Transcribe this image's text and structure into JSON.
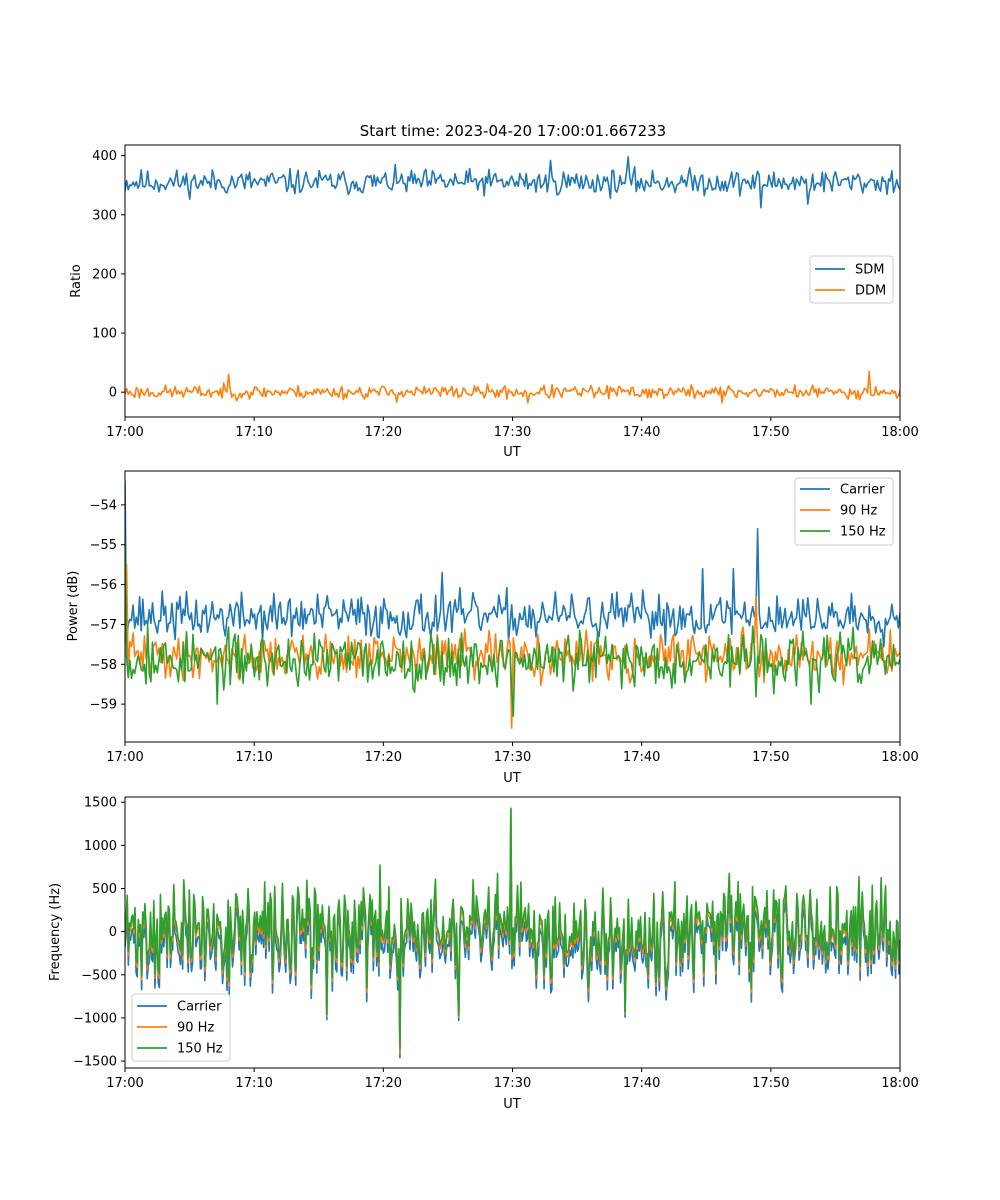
{
  "figure": {
    "title": "Start time: 2023-04-20 17:00:01.667233"
  },
  "chart_data": [
    {
      "type": "line",
      "xlabel": "UT",
      "ylabel": "Ratio",
      "xlim": [
        "17:00",
        "18:00"
      ],
      "xticks": [
        "17:00",
        "17:10",
        "17:20",
        "17:30",
        "17:40",
        "17:50",
        "18:00"
      ],
      "ylim": [
        -42,
        418
      ],
      "yticks": [
        0,
        100,
        200,
        300,
        400
      ],
      "grid": false,
      "legend_position": "center-right",
      "series": [
        {
          "name": "SDM",
          "color": "#1f77b4",
          "points": 480,
          "center": 355,
          "spread": 13,
          "seed": 11,
          "spikes": [
            [
              0.0,
              340
            ],
            [
              0.55,
              392
            ],
            [
              0.65,
              398
            ],
            [
              0.82,
              312
            ],
            [
              0.88,
              318
            ]
          ]
        },
        {
          "name": "DDM",
          "color": "#ff7f0e",
          "points": 480,
          "center": 0,
          "spread": 7,
          "seed": 23,
          "spikes": [
            [
              0.133,
              30
            ],
            [
              0.35,
              -17
            ],
            [
              0.52,
              -18
            ],
            [
              0.77,
              -18
            ],
            [
              0.96,
              35
            ]
          ]
        }
      ]
    },
    {
      "type": "line",
      "xlabel": "UT",
      "ylabel": "Power (dB)",
      "xlim": [
        "17:00",
        "18:00"
      ],
      "xticks": [
        "17:00",
        "17:10",
        "17:20",
        "17:30",
        "17:40",
        "17:50",
        "18:00"
      ],
      "ylim": [
        -59.95,
        -53.15
      ],
      "yticks": [
        -59,
        -58,
        -57,
        -56,
        -55,
        -54
      ],
      "grid": false,
      "legend_position": "upper-right",
      "series": [
        {
          "name": "Carrier",
          "color": "#1f77b4",
          "points": 480,
          "center": -56.8,
          "spread": 0.35,
          "seed": 37,
          "spikes": [
            [
              0.0,
              -53.4
            ],
            [
              0.41,
              -55.7
            ],
            [
              0.745,
              -55.6
            ],
            [
              0.785,
              -55.6
            ],
            [
              0.817,
              -54.6
            ]
          ]
        },
        {
          "name": "90 Hz",
          "color": "#ff7f0e",
          "points": 480,
          "center": -57.8,
          "spread": 0.35,
          "seed": 41,
          "spikes": [
            [
              0.002,
              -55.5
            ],
            [
              0.498,
              -59.6
            ],
            [
              0.815,
              -56.3
            ]
          ]
        },
        {
          "name": "150 Hz",
          "color": "#2ca02c",
          "points": 480,
          "center": -57.9,
          "spread": 0.42,
          "seed": 53,
          "spikes": [
            [
              0.001,
              -54.8
            ],
            [
              0.12,
              -59.0
            ],
            [
              0.5,
              -59.3
            ],
            [
              0.885,
              -59.0
            ],
            [
              0.03,
              -57.0
            ]
          ]
        }
      ]
    },
    {
      "type": "line",
      "xlabel": "UT",
      "ylabel": "Frequency (Hz)",
      "xlim": [
        "17:00",
        "18:00"
      ],
      "xticks": [
        "17:00",
        "17:10",
        "17:20",
        "17:30",
        "17:40",
        "17:50",
        "18:00"
      ],
      "ylim": [
        -1580,
        1560
      ],
      "yticks": [
        -1500,
        -1000,
        -500,
        0,
        500,
        1000,
        1500
      ],
      "grid": false,
      "legend_position": "lower-left",
      "series": [
        {
          "name": "Carrier",
          "color": "#1f77b4",
          "points": 700,
          "center": -70,
          "spread": 330,
          "seed": 71,
          "offset": -70,
          "spikes": [
            [
              0.355,
              -1460
            ],
            [
              0.498,
              1420
            ],
            [
              0.26,
              -1020
            ],
            [
              0.43,
              -1030
            ],
            [
              0.645,
              -990
            ]
          ]
        },
        {
          "name": "90 Hz",
          "color": "#ff7f0e",
          "points": 700,
          "center": 0,
          "spread": 330,
          "seed": 71,
          "offset": -30,
          "spikes": [
            [
              0.355,
              -1400
            ],
            [
              0.498,
              1420
            ],
            [
              0.26,
              -980
            ],
            [
              0.43,
              -990
            ],
            [
              0.645,
              -950
            ]
          ]
        },
        {
          "name": "150 Hz",
          "color": "#2ca02c",
          "points": 700,
          "center": 20,
          "spread": 330,
          "seed": 71,
          "offset": 0,
          "spikes": [
            [
              0.355,
              -1350
            ],
            [
              0.498,
              1430
            ],
            [
              0.26,
              -960
            ],
            [
              0.43,
              -970
            ],
            [
              0.645,
              -930
            ]
          ]
        }
      ]
    }
  ]
}
